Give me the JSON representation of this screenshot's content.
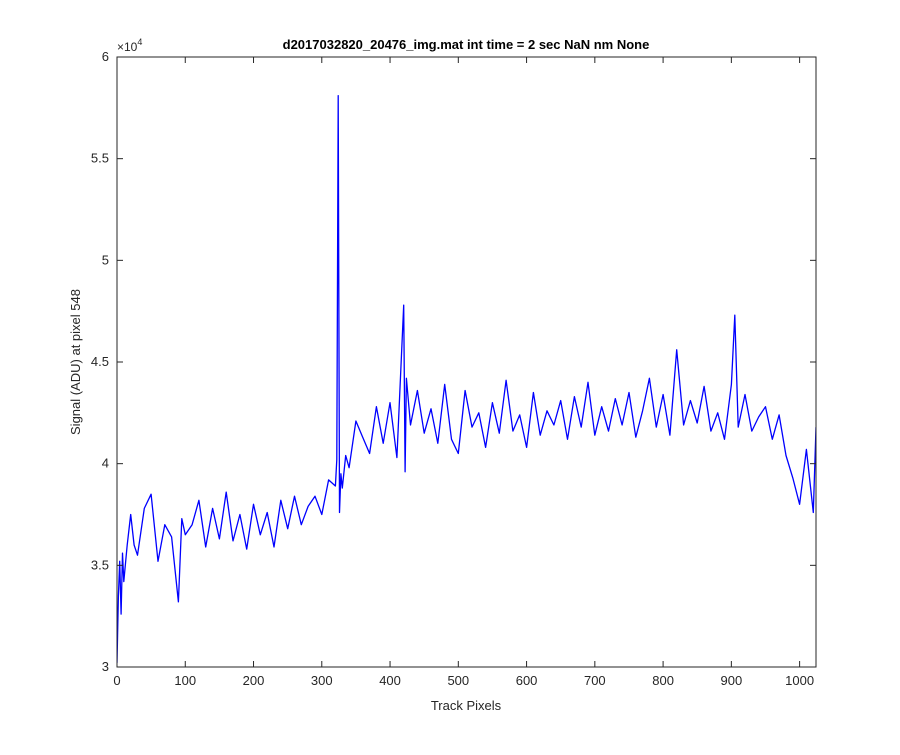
{
  "chart_data": {
    "type": "line",
    "title": "d2017032820_20476_img.mat int time = 2 sec  NaN nm None",
    "xlabel": "Track Pixels",
    "ylabel": "Signal (ADU) at pixel 548",
    "xlim": [
      0,
      1024
    ],
    "ylim": [
      30000,
      60000
    ],
    "y_exponent_label": "×10",
    "y_exponent_power": "4",
    "xticks": [
      0,
      100,
      200,
      300,
      400,
      500,
      600,
      700,
      800,
      900,
      1000
    ],
    "xtick_labels": [
      "0",
      "100",
      "200",
      "300",
      "400",
      "500",
      "600",
      "700",
      "800",
      "900",
      "1000"
    ],
    "yticks": [
      30000,
      35000,
      40000,
      45000,
      50000,
      55000,
      60000
    ],
    "ytick_labels": [
      "3",
      "3.5",
      "4",
      "4.5",
      "5",
      "5.5",
      "6"
    ],
    "grid": false,
    "legend": false,
    "series_color": "#0000ff",
    "series": [
      {
        "x": [
          0,
          2,
          4,
          6,
          8,
          10,
          15,
          20,
          25,
          30,
          40,
          50,
          60,
          70,
          80,
          90,
          95,
          100,
          110,
          120,
          130,
          140,
          150,
          160,
          170,
          180,
          190,
          200,
          210,
          220,
          230,
          240,
          250,
          260,
          270,
          280,
          290,
          300,
          310,
          320,
          322,
          324,
          326,
          328,
          330,
          335,
          340,
          350,
          360,
          370,
          380,
          390,
          400,
          410,
          420,
          422,
          424,
          430,
          440,
          450,
          460,
          470,
          480,
          490,
          500,
          510,
          520,
          530,
          540,
          550,
          560,
          570,
          580,
          590,
          600,
          610,
          620,
          630,
          640,
          650,
          660,
          670,
          680,
          690,
          700,
          710,
          720,
          730,
          740,
          750,
          760,
          770,
          780,
          790,
          800,
          810,
          820,
          830,
          840,
          850,
          860,
          870,
          880,
          890,
          900,
          905,
          910,
          920,
          930,
          940,
          950,
          960,
          970,
          980,
          990,
          1000,
          1010,
          1020,
          1024
        ],
        "values": [
          30200,
          33500,
          35200,
          32600,
          35600,
          34200,
          36000,
          37500,
          36000,
          35500,
          37800,
          38500,
          35200,
          37000,
          36400,
          33200,
          37300,
          36500,
          37000,
          38200,
          35900,
          37800,
          36300,
          38600,
          36200,
          37500,
          35800,
          38000,
          36500,
          37600,
          35900,
          38200,
          36800,
          38400,
          37000,
          37900,
          38400,
          37500,
          39200,
          38900,
          40200,
          58100,
          37600,
          39500,
          38800,
          40400,
          39800,
          42100,
          41300,
          40500,
          42800,
          41000,
          43000,
          40300,
          47800,
          39600,
          44200,
          41900,
          43600,
          41500,
          42700,
          41000,
          43900,
          41200,
          40500,
          43600,
          41800,
          42500,
          40800,
          43000,
          41500,
          44100,
          41600,
          42400,
          40800,
          43500,
          41400,
          42600,
          41900,
          43100,
          41200,
          43300,
          41800,
          44000,
          41400,
          42800,
          41600,
          43200,
          41900,
          43500,
          41300,
          42600,
          44200,
          41800,
          43400,
          41400,
          45600,
          41900,
          43100,
          42000,
          43800,
          41600,
          42500,
          41200,
          43900,
          47300,
          41800,
          43400,
          41600,
          42300,
          42800,
          41200,
          42400,
          40400,
          39300,
          38000,
          40700,
          37600,
          41800
        ]
      }
    ]
  }
}
